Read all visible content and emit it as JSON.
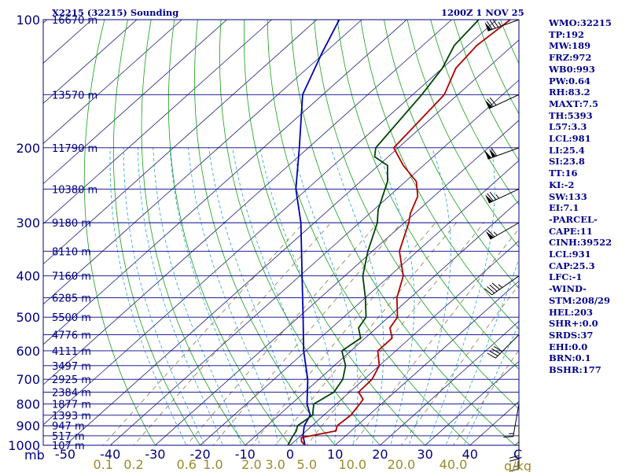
{
  "title_left": "X2215 (32215) Sounding",
  "title_right": "1200Z  1 NOV 25",
  "mb_label": "mb",
  "temp_unit": "C",
  "mix_unit": "g/kg",
  "colors": {
    "frame": "#000080",
    "isobar": "#000080",
    "isotherm": "#1f1f7a",
    "dry_adiabat": "#15a015",
    "moist_adiabat": "#2aa0d0",
    "mixing_ratio": "#7a6a2a",
    "temperature": "#b00000",
    "dewpoint": "#004400",
    "parcel": "#0000b0",
    "mix_label": "#9a8a2a",
    "index_text": "#00008b"
  },
  "index_lines": [
    "WMO:32215",
    "TP:192",
    "MW:189",
    "FRZ:972",
    "WB0:993",
    "PW:0.64",
    "RH:83.2",
    "MAXT:7.5",
    "TH:5393",
    "L57:3.3",
    "LCL:981",
    "LI:25.4",
    "SI:23.8",
    "TT:16",
    "KI:-2",
    "SW:133",
    "EI:7.1",
    "-PARCEL-",
    "CAPE:11",
    "CINH:39522",
    "LCL:931",
    "CAP:25.3",
    "LFC:-1",
    "-WIND-",
    "STM:208/29",
    "HEL:203",
    "SHR+:0.0",
    "SRDS:37",
    "EHI:0.0",
    "BRN:0.1",
    "BSHR:177"
  ],
  "chart_data": {
    "type": "skew-t",
    "title": "X2215 (32215) Sounding",
    "valid_time": "1200Z  1 NOV 25",
    "pressure_ticks": [
      "100",
      "200",
      "300",
      "400",
      "500",
      "600",
      "700",
      "800",
      "900",
      "1000"
    ],
    "pressure_tick_values": [
      100,
      200,
      300,
      400,
      500,
      600,
      700,
      800,
      900,
      1000
    ],
    "temperature_ticks": [
      "-50",
      "-40",
      "-30",
      "-20",
      "-10",
      "0",
      "10",
      "20",
      "30",
      "40"
    ],
    "temperature_tick_values": [
      -50,
      -40,
      -30,
      -20,
      -10,
      0,
      10,
      20,
      30,
      40
    ],
    "mixing_ratio_labels": [
      "0.1",
      "0.2",
      "0.6",
      "1.0",
      "2.0",
      "3.0",
      "5.0",
      "10.0",
      "20.0",
      "40.0"
    ],
    "mixing_ratio_values": [
      0.1,
      0.2,
      0.6,
      1.0,
      2.0,
      3.0,
      5.0,
      10.0,
      20.0,
      40.0
    ],
    "height_levels": [
      {
        "p": 100,
        "label": "16670 m"
      },
      {
        "p": 150,
        "label": "13570 m"
      },
      {
        "p": 200,
        "label": "11790 m"
      },
      {
        "p": 250,
        "label": "10380 m"
      },
      {
        "p": 300,
        "label": "9180 m"
      },
      {
        "p": 350,
        "label": "8110 m"
      },
      {
        "p": 400,
        "label": "7160 m"
      },
      {
        "p": 450,
        "label": "6285 m"
      },
      {
        "p": 500,
        "label": "5500 m"
      },
      {
        "p": 550,
        "label": "4776 m"
      },
      {
        "p": 600,
        "label": "4111 m"
      },
      {
        "p": 650,
        "label": "3497 m"
      },
      {
        "p": 700,
        "label": "2925 m"
      },
      {
        "p": 750,
        "label": "2384 m"
      },
      {
        "p": 800,
        "label": "1877 m"
      },
      {
        "p": 850,
        "label": "1393 m"
      },
      {
        "p": 900,
        "label": "947 m"
      },
      {
        "p": 950,
        "label": "517 m"
      },
      {
        "p": 1000,
        "label": "107 m"
      }
    ],
    "temperature_profile": [
      [
        1000,
        3.3
      ],
      [
        980,
        1.6
      ],
      [
        960,
        0.6
      ],
      [
        925,
        6.6
      ],
      [
        900,
        5.6
      ],
      [
        850,
        6.0
      ],
      [
        800,
        5.2
      ],
      [
        780,
        4.8
      ],
      [
        750,
        2.0
      ],
      [
        700,
        1.8
      ],
      [
        650,
        0.0
      ],
      [
        600,
        -4.0
      ],
      [
        560,
        -4.0
      ],
      [
        530,
        -7.0
      ],
      [
        500,
        -8.0
      ],
      [
        450,
        -13.0
      ],
      [
        400,
        -17.0
      ],
      [
        350,
        -24.0
      ],
      [
        300,
        -29.0
      ],
      [
        285,
        -31.0
      ],
      [
        260,
        -33.6
      ],
      [
        240,
        -37.6
      ],
      [
        220,
        -44.5
      ],
      [
        200,
        -51.0
      ],
      [
        150,
        -53.0
      ],
      [
        130,
        -57.0
      ],
      [
        115,
        -58.0
      ],
      [
        100,
        -57.0
      ]
    ],
    "dewpoint_profile": [
      [
        1000,
        -0.5
      ],
      [
        960,
        -1.5
      ],
      [
        925,
        -2.2
      ],
      [
        900,
        -3.2
      ],
      [
        850,
        -2.5
      ],
      [
        800,
        -5.0
      ],
      [
        750,
        -3.5
      ],
      [
        700,
        -4.7
      ],
      [
        650,
        -7.5
      ],
      [
        600,
        -12.0
      ],
      [
        560,
        -11.0
      ],
      [
        530,
        -14.0
      ],
      [
        500,
        -15.0
      ],
      [
        450,
        -20.0
      ],
      [
        400,
        -26.0
      ],
      [
        350,
        -31.0
      ],
      [
        300,
        -36.0
      ],
      [
        280,
        -39.0
      ],
      [
        240,
        -44.0
      ],
      [
        220,
        -48.0
      ],
      [
        210,
        -53.0
      ],
      [
        200,
        -55.0
      ],
      [
        150,
        -58.0
      ],
      [
        130,
        -60.0
      ],
      [
        115,
        -63.0
      ],
      [
        100,
        -64.0
      ]
    ],
    "parcel_profile": [
      [
        1000,
        3.3
      ],
      [
        950,
        0.5
      ],
      [
        900,
        -1.7
      ],
      [
        850,
        -3.0
      ],
      [
        800,
        -6.5
      ],
      [
        700,
        -12.5
      ],
      [
        600,
        -20.5
      ],
      [
        500,
        -29.0
      ],
      [
        400,
        -39.5
      ],
      [
        300,
        -53.0
      ],
      [
        250,
        -62.5
      ],
      [
        200,
        -72.0
      ],
      [
        150,
        -84.5
      ],
      [
        120,
        -90.5
      ],
      [
        100,
        -95.0
      ]
    ],
    "wind_barbs": [
      {
        "p": 100,
        "dir": 250,
        "spd": 85
      },
      {
        "p": 150,
        "dir": 245,
        "spd": 70
      },
      {
        "p": 200,
        "dir": 250,
        "spd": 110
      },
      {
        "p": 250,
        "dir": 245,
        "spd": 75
      },
      {
        "p": 300,
        "dir": 240,
        "spd": 65
      },
      {
        "p": 400,
        "dir": 235,
        "spd": 45
      },
      {
        "p": 550,
        "dir": 225,
        "spd": 40
      },
      {
        "p": 800,
        "dir": 190,
        "spd": 15
      },
      {
        "p": 900,
        "dir": 180,
        "spd": 20
      },
      {
        "p": 950,
        "dir": 180,
        "spd": 15
      }
    ]
  }
}
